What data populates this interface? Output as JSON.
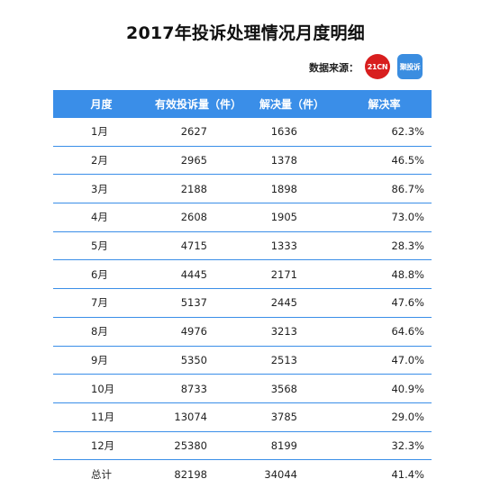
{
  "title": "2017年投诉处理情况月度明细",
  "source_label": "数据来源：",
  "logos": {
    "a": "21CN",
    "b": "聚投诉"
  },
  "colors": {
    "header_bg": "#3a8ee8",
    "logo_21cn": "#d81e1e",
    "logo_jts": "#3a8de0"
  },
  "table": {
    "headers": [
      "月度",
      "有效投诉量（件）",
      "解决量（件）",
      "解决率"
    ],
    "rows": [
      [
        "1月",
        "2627",
        "1636",
        "62.3%"
      ],
      [
        "2月",
        "2965",
        "1378",
        "46.5%"
      ],
      [
        "3月",
        "2188",
        "1898",
        "86.7%"
      ],
      [
        "4月",
        "2608",
        "1905",
        "73.0%"
      ],
      [
        "5月",
        "4715",
        "1333",
        "28.3%"
      ],
      [
        "6月",
        "4445",
        "2171",
        "48.8%"
      ],
      [
        "7月",
        "5137",
        "2445",
        "47.6%"
      ],
      [
        "8月",
        "4976",
        "3213",
        "64.6%"
      ],
      [
        "9月",
        "5350",
        "2513",
        "47.0%"
      ],
      [
        "10月",
        "8733",
        "3568",
        "40.9%"
      ],
      [
        "11月",
        "13074",
        "3785",
        "29.0%"
      ],
      [
        "12月",
        "25380",
        "8199",
        "32.3%"
      ],
      [
        "总计",
        "82198",
        "34044",
        "41.4%"
      ]
    ]
  }
}
